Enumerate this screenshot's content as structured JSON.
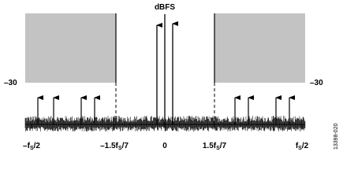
{
  "axis_title": "dBFS",
  "level_labels": {
    "left": "–30",
    "right": "–30"
  },
  "x_labels": [
    {
      "pre": "–f",
      "sub": "S",
      "post": "/2"
    },
    {
      "pre": "–1.5f",
      "sub": "S",
      "post": "/7"
    },
    {
      "pre": "0",
      "sub": null,
      "post": null
    },
    {
      "pre": "1.5f",
      "sub": "S",
      "post": "/7"
    },
    {
      "pre": "f",
      "sub": "S",
      "post": "/2"
    }
  ],
  "figure_id": "13398-020"
}
